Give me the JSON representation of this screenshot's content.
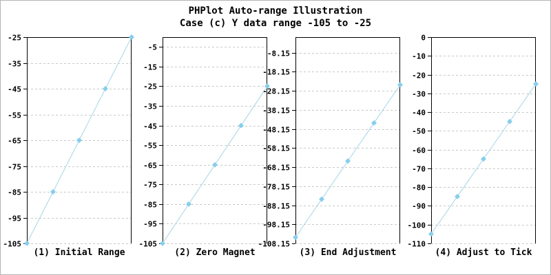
{
  "header": {
    "title_line1": "PHPlot Auto-range Illustration",
    "title_line2": "Case (c) Y data range -105 to -25"
  },
  "colors": {
    "line": "#a5d5e8",
    "marker": "#87ceeb",
    "grid": "#c8c8c8",
    "axis": "#000000",
    "background": "#ffffff",
    "canvas_border": "#b4b4b4"
  },
  "chart_data": [
    {
      "type": "line",
      "title": "(1) Initial Range",
      "y_values": [
        -105,
        -85,
        -65,
        -45,
        -25
      ],
      "ylim": [
        -105,
        -25
      ],
      "yticks": [
        -25,
        -35,
        -45,
        -55,
        -65,
        -75,
        -85,
        -95,
        -105
      ],
      "ytick_labels": [
        "-25",
        "-35",
        "-45",
        "-55",
        "-65",
        "-75",
        "-85",
        "-95",
        "-105"
      ],
      "tick_step": 10,
      "grid": "horizontal-dashed",
      "marker": "diamond",
      "legend": "none",
      "x_axis_labels": "none"
    },
    {
      "type": "line",
      "title": "(2) Zero Magnet",
      "y_values": [
        -105,
        -85,
        -65,
        -45,
        -25
      ],
      "ylim": [
        -105,
        0
      ],
      "yticks": [
        -5,
        -15,
        -25,
        -35,
        -45,
        -55,
        -65,
        -75,
        -85,
        -95,
        -105
      ],
      "ytick_labels": [
        "-5",
        "-15",
        "-25",
        "-35",
        "-45",
        "-55",
        "-65",
        "-75",
        "-85",
        "-95",
        "-105"
      ],
      "tick_step": 10,
      "grid": "horizontal-dashed",
      "marker": "diamond",
      "legend": "none",
      "x_axis_labels": "none"
    },
    {
      "type": "line",
      "title": "(3) End Adjustment",
      "y_values": [
        -105,
        -85,
        -65,
        -45,
        -25
      ],
      "ylim": [
        -108.15,
        0
      ],
      "yticks": [
        -8.15,
        -18.15,
        -28.15,
        -38.15,
        -48.15,
        -58.15,
        -68.15,
        -78.15,
        -88.15,
        -98.15,
        -108.15
      ],
      "ytick_labels": [
        "-8.15",
        "-18.15",
        "-28.15",
        "-38.15",
        "-48.15",
        "-58.15",
        "-68.15",
        "-78.15",
        "-88.15",
        "-98.15",
        "-108.15"
      ],
      "tick_step": 10,
      "grid": "horizontal-dashed",
      "marker": "diamond",
      "legend": "none",
      "x_axis_labels": "none"
    },
    {
      "type": "line",
      "title": "(4) Adjust to Tick",
      "y_values": [
        -105,
        -85,
        -65,
        -45,
        -25
      ],
      "ylim": [
        -110,
        0
      ],
      "yticks": [
        0,
        -10,
        -20,
        -30,
        -40,
        -50,
        -60,
        -70,
        -80,
        -90,
        -100,
        -110
      ],
      "ytick_labels": [
        "0",
        "-10",
        "-20",
        "-30",
        "-40",
        "-50",
        "-60",
        "-70",
        "-80",
        "-90",
        "-100",
        "-110"
      ],
      "tick_step": 10,
      "grid": "horizontal-dashed",
      "marker": "diamond",
      "legend": "none",
      "x_axis_labels": "none"
    }
  ]
}
